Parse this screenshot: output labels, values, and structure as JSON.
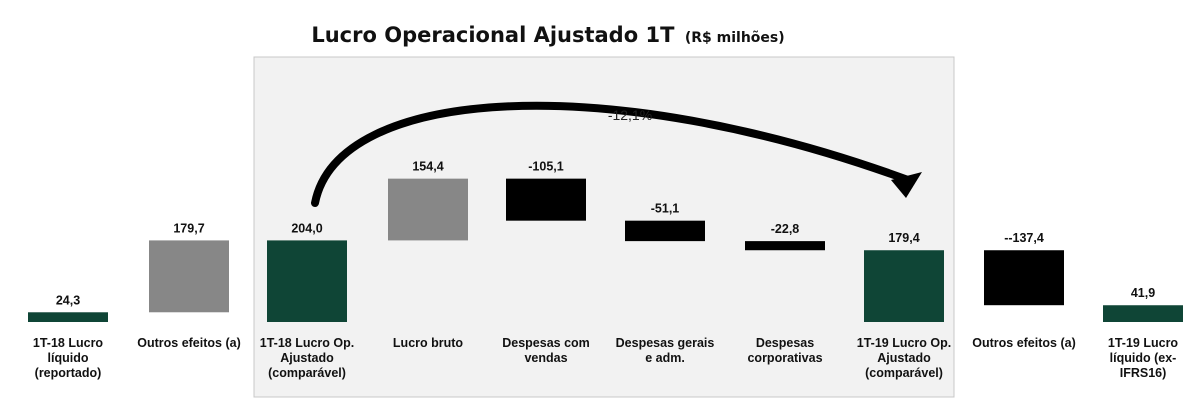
{
  "chart_data": {
    "type": "bar",
    "variant": "waterfall",
    "title": "Lucro Operacional Ajustado 1T",
    "subtitle": "(R$ milhões)",
    "annotation": "-12,1%",
    "grid": false,
    "colors": {
      "green": "#0f4536",
      "gray": "#878787",
      "black": "#000000",
      "panel": "#f2f2f2",
      "arrow": "#000000"
    },
    "categories": [
      [
        "1T-18 Lucro",
        "líquido",
        "(reportado)"
      ],
      [
        "Outros efeitos (a)"
      ],
      [
        "1T-18 Lucro Op.",
        "Ajustado",
        "(comparável)"
      ],
      [
        "Lucro bruto"
      ],
      [
        "Despesas com",
        "vendas"
      ],
      [
        "Despesas gerais",
        "e adm."
      ],
      [
        "Despesas",
        "corporativas"
      ],
      [
        "1T-19 Lucro Op.",
        "Ajustado",
        "(comparável)"
      ],
      [
        "Outros efeitos (a)"
      ],
      [
        "1T-19 Lucro",
        "líquido (ex-",
        "IFRS16)"
      ]
    ],
    "labels": [
      "24,3",
      "179,7",
      "204,0",
      "154,4",
      "-105,1",
      "-51,1",
      "-22,8",
      "179,4",
      "--137,4",
      "41,9"
    ],
    "bars": [
      {
        "start": 0,
        "end": 24.3,
        "color": "green"
      },
      {
        "start": 24.3,
        "end": 204.0,
        "color": "gray"
      },
      {
        "start": 0,
        "end": 204.0,
        "color": "green"
      },
      {
        "start": 204.0,
        "end": 358.4,
        "color": "gray"
      },
      {
        "start": 253.3,
        "end": 358.4,
        "color": "black"
      },
      {
        "start": 202.2,
        "end": 253.3,
        "color": "black"
      },
      {
        "start": 179.4,
        "end": 202.2,
        "color": "black"
      },
      {
        "start": 0,
        "end": 179.4,
        "color": "green"
      },
      {
        "start": 42.0,
        "end": 179.4,
        "color": "black"
      },
      {
        "start": 0,
        "end": 41.9,
        "color": "green"
      }
    ]
  }
}
